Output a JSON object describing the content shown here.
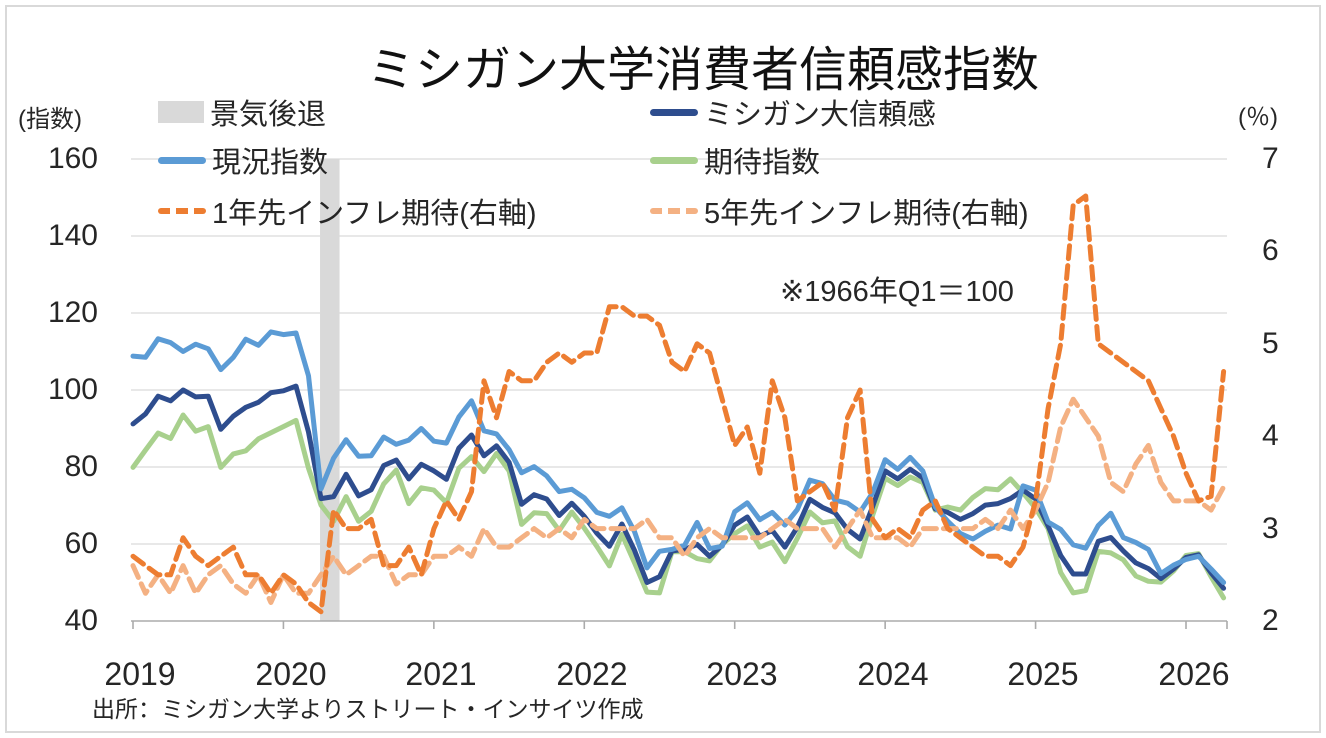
{
  "title": "ミシガン大学消費者信頼感指数",
  "annotation": "※1966年Q1＝100",
  "source": "出所：ミシガン大学よりストリート・インサイツ作成",
  "axis_left": {
    "unit_label": "(指数)",
    "ticks": [
      "160",
      "140",
      "120",
      "100",
      "80",
      "60",
      "40"
    ]
  },
  "axis_right": {
    "unit_label": "(％)",
    "ticks": [
      "7",
      "6",
      "5",
      "4",
      "3",
      "2"
    ]
  },
  "x_axis": {
    "years": [
      "2019",
      "2020",
      "2021",
      "2022",
      "2023",
      "2024",
      "2025",
      "2026"
    ]
  },
  "legend": {
    "items": [
      {
        "label": "景気後退",
        "swatch": "box",
        "color": "#D9D9D9"
      },
      {
        "label": "ミシガン大信頼感",
        "swatch": "line",
        "color": "#2E4D8E"
      },
      {
        "label": "現況指数",
        "swatch": "line",
        "color": "#5B9BD5"
      },
      {
        "label": "期待指数",
        "swatch": "line",
        "color": "#A8D08D"
      },
      {
        "label": "1年先インフレ期待(右軸)",
        "swatch": "dash",
        "color": "#ED7D31"
      },
      {
        "label": "5年先インフレ期待(右軸)",
        "swatch": "dash",
        "color": "#F4B183"
      }
    ]
  },
  "colors": {
    "sentiment": "#2E4D8E",
    "current": "#5B9BD5",
    "expectations": "#A8D08D",
    "infl1y": "#ED7D31",
    "infl5y": "#F4B183",
    "recession": "#D9D9D9",
    "gridline": "#D9D9D9",
    "axis": "#ABABAB",
    "text": "#262626"
  },
  "chart_data": {
    "type": "line",
    "title": "ミシガン大学消費者信頼感指数",
    "note": "※1966年Q1＝100",
    "left_axis": {
      "label": "指数",
      "min": 40,
      "max": 160,
      "gridline_values": [
        160,
        140,
        120,
        100,
        80,
        60
      ]
    },
    "right_axis": {
      "label": "%",
      "min": 2,
      "max": 7
    },
    "recession_band": {
      "name": "景気後退",
      "start": "2020-04",
      "end": "2020-05",
      "color": "#D9D9D9"
    },
    "x": [
      "2019-01",
      "2019-02",
      "2019-03",
      "2019-04",
      "2019-05",
      "2019-06",
      "2019-07",
      "2019-08",
      "2019-09",
      "2019-10",
      "2019-11",
      "2019-12",
      "2020-01",
      "2020-02",
      "2020-03",
      "2020-04",
      "2020-05",
      "2020-06",
      "2020-07",
      "2020-08",
      "2020-09",
      "2020-10",
      "2020-11",
      "2020-12",
      "2021-01",
      "2021-02",
      "2021-03",
      "2021-04",
      "2021-05",
      "2021-06",
      "2021-07",
      "2021-08",
      "2021-09",
      "2021-10",
      "2021-11",
      "2021-12",
      "2022-01",
      "2022-02",
      "2022-03",
      "2022-04",
      "2022-05",
      "2022-06",
      "2022-07",
      "2022-08",
      "2022-09",
      "2022-10",
      "2022-11",
      "2022-12",
      "2023-01",
      "2023-02",
      "2023-03",
      "2023-04",
      "2023-05",
      "2023-06",
      "2023-07",
      "2023-08",
      "2023-09",
      "2023-10",
      "2023-11",
      "2023-12",
      "2024-01",
      "2024-02",
      "2024-03",
      "2024-04",
      "2024-05",
      "2024-06",
      "2024-07",
      "2024-08",
      "2024-09",
      "2024-10",
      "2024-11",
      "2024-12",
      "2025-01",
      "2025-02",
      "2025-03",
      "2025-04",
      "2025-05",
      "2025-06",
      "2025-07",
      "2025-08",
      "2025-09",
      "2025-10",
      "2025-11",
      "2025-12",
      "2026-01",
      "2026-02",
      "2026-03",
      "2026-04"
    ],
    "series": [
      {
        "name": "ミシガン大信頼感",
        "axis": "left",
        "color": "#2E4D8E",
        "dash": false,
        "values": [
          91.2,
          93.8,
          98.4,
          97.2,
          100.0,
          98.2,
          98.4,
          89.8,
          93.2,
          95.5,
          96.8,
          99.3,
          99.8,
          101.0,
          89.1,
          71.8,
          72.3,
          78.1,
          72.5,
          74.1,
          80.4,
          81.8,
          76.9,
          80.7,
          79.0,
          76.8,
          84.9,
          88.3,
          82.9,
          85.5,
          81.2,
          70.3,
          72.8,
          71.7,
          67.4,
          70.6,
          67.2,
          62.8,
          59.4,
          65.2,
          58.4,
          50.0,
          51.5,
          58.2,
          58.6,
          59.9,
          56.8,
          59.7,
          64.9,
          67.0,
          62.0,
          63.5,
          59.2,
          64.4,
          71.6,
          69.5,
          68.1,
          63.8,
          61.3,
          69.7,
          79.0,
          76.9,
          79.4,
          77.2,
          69.1,
          68.2,
          66.4,
          67.9,
          70.1,
          70.5,
          71.8,
          74.0,
          71.7,
          64.7,
          57.0,
          52.2,
          52.2,
          60.7,
          61.7,
          58.2,
          55.1,
          53.6,
          51.0,
          53.5,
          56.5,
          57.2,
          52.5,
          48.5
        ]
      },
      {
        "name": "現況指数",
        "axis": "left",
        "color": "#5B9BD5",
        "dash": false,
        "values": [
          108.8,
          108.5,
          113.3,
          112.3,
          110.0,
          111.9,
          110.7,
          105.3,
          108.5,
          113.2,
          111.6,
          115.1,
          114.4,
          114.8,
          103.7,
          74.3,
          82.3,
          87.1,
          82.8,
          82.9,
          87.8,
          85.9,
          87.0,
          90.0,
          86.7,
          86.2,
          93.0,
          97.2,
          89.4,
          88.6,
          84.5,
          78.5,
          80.1,
          77.7,
          73.6,
          74.2,
          72.0,
          68.2,
          67.2,
          69.4,
          63.3,
          53.8,
          58.1,
          58.6,
          59.7,
          65.6,
          58.8,
          59.4,
          68.4,
          70.7,
          66.3,
          68.2,
          64.9,
          69.0,
          76.6,
          75.7,
          71.4,
          70.6,
          68.3,
          73.3,
          81.9,
          79.4,
          82.5,
          79.0,
          69.6,
          65.9,
          62.7,
          61.3,
          63.3,
          64.9,
          63.9,
          75.1,
          74.0,
          65.7,
          63.8,
          59.8,
          58.9,
          64.8,
          68.0,
          61.7,
          60.4,
          58.6,
          52.3,
          54.5,
          56.0,
          56.8,
          53.5,
          50.0
        ]
      },
      {
        "name": "期待指数",
        "axis": "left",
        "color": "#A8D08D",
        "dash": false,
        "values": [
          79.9,
          84.4,
          88.8,
          87.4,
          93.5,
          89.3,
          90.5,
          79.9,
          83.4,
          84.2,
          87.3,
          88.9,
          90.5,
          92.1,
          79.7,
          70.1,
          65.9,
          72.3,
          65.9,
          68.5,
          75.6,
          79.2,
          70.5,
          74.6,
          74.0,
          70.7,
          79.7,
          82.7,
          78.8,
          83.5,
          79.0,
          65.1,
          68.1,
          67.9,
          63.5,
          68.3,
          64.1,
          59.4,
          54.3,
          62.5,
          55.2,
          47.5,
          47.3,
          58.0,
          58.0,
          56.2,
          55.6,
          59.9,
          62.7,
          64.7,
          59.2,
          60.5,
          55.4,
          61.5,
          68.3,
          65.5,
          66.0,
          59.3,
          56.8,
          67.4,
          77.1,
          75.2,
          77.4,
          76.0,
          68.8,
          69.6,
          68.8,
          72.1,
          74.4,
          74.1,
          76.9,
          73.3,
          69.3,
          64.0,
          52.6,
          47.3,
          47.9,
          58.1,
          57.7,
          55.9,
          51.7,
          50.3,
          50.1,
          53.0,
          57.0,
          57.5,
          51.5,
          46.0
        ]
      },
      {
        "name": "1年先インフレ期待(右軸)",
        "axis": "right",
        "color": "#ED7D31",
        "dash": true,
        "values": [
          2.7,
          2.6,
          2.5,
          2.5,
          2.9,
          2.7,
          2.6,
          2.7,
          2.8,
          2.5,
          2.5,
          2.3,
          2.5,
          2.4,
          2.2,
          2.1,
          3.2,
          3.0,
          3.0,
          3.1,
          2.6,
          2.6,
          2.8,
          2.5,
          3.0,
          3.3,
          3.1,
          3.4,
          4.6,
          4.2,
          4.7,
          4.6,
          4.6,
          4.8,
          4.9,
          4.8,
          4.9,
          4.9,
          5.4,
          5.4,
          5.3,
          5.3,
          5.2,
          4.8,
          4.7,
          5.0,
          4.9,
          4.4,
          3.9,
          4.1,
          3.6,
          4.6,
          4.2,
          3.3,
          3.4,
          3.5,
          3.2,
          4.2,
          4.5,
          3.1,
          2.9,
          3.0,
          2.9,
          3.2,
          3.3,
          3.0,
          2.9,
          2.8,
          2.7,
          2.7,
          2.6,
          2.8,
          3.3,
          4.3,
          5.0,
          6.5,
          6.6,
          5.0,
          4.9,
          4.8,
          4.7,
          4.6,
          4.3,
          4.0,
          3.6,
          3.3,
          3.35,
          4.7
        ]
      },
      {
        "name": "5年先インフレ期待(右軸)",
        "axis": "right",
        "color": "#F4B183",
        "dash": true,
        "values": [
          2.6,
          2.3,
          2.5,
          2.3,
          2.6,
          2.3,
          2.5,
          2.6,
          2.4,
          2.3,
          2.5,
          2.2,
          2.5,
          2.3,
          2.3,
          2.5,
          2.7,
          2.5,
          2.6,
          2.7,
          2.7,
          2.4,
          2.5,
          2.5,
          2.7,
          2.7,
          2.8,
          2.7,
          3.0,
          2.8,
          2.8,
          2.9,
          3.0,
          2.9,
          3.0,
          2.9,
          3.1,
          3.0,
          3.0,
          3.0,
          3.0,
          3.1,
          2.9,
          2.9,
          2.7,
          2.9,
          3.0,
          2.9,
          2.9,
          2.9,
          2.9,
          3.0,
          3.1,
          3.0,
          3.0,
          3.0,
          2.8,
          3.0,
          3.2,
          2.9,
          2.9,
          2.9,
          2.8,
          3.0,
          3.0,
          3.0,
          3.0,
          3.0,
          3.1,
          3.0,
          3.2,
          3.0,
          3.2,
          3.5,
          4.1,
          4.4,
          4.2,
          4.0,
          3.5,
          3.4,
          3.7,
          3.9,
          3.5,
          3.3,
          3.3,
          3.3,
          3.2,
          3.45
        ]
      }
    ]
  }
}
